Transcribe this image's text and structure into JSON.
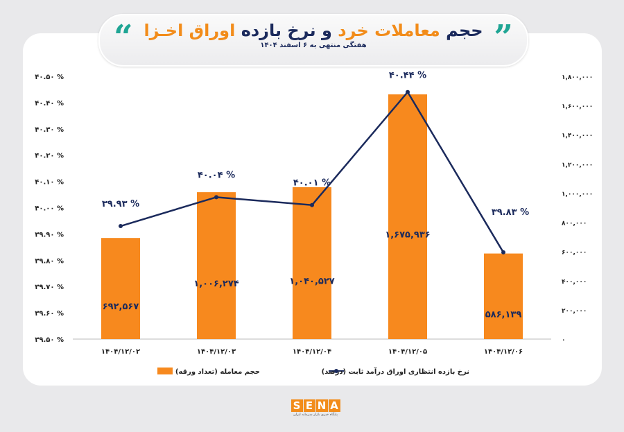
{
  "header": {
    "title_part1": "حجم",
    "title_part2": "معاملات خرد",
    "title_part3": "و نرخ بازده",
    "title_part4": "اوراق اخـزا",
    "subtitle": "هفتگی منتهی به ۶ اسفند ۱۴۰۴",
    "quote_icon": "quotation-marks"
  },
  "logo": {
    "letters": [
      "S",
      "E",
      "N",
      "A"
    ],
    "tagline": "پایگاه خبری بازار سرمایه ایران"
  },
  "colors": {
    "bar": "#f7891e",
    "line": "#1b2a5c",
    "accent": "#1fa594"
  },
  "chart_data": {
    "type": "bar+line",
    "categories": [
      "۱۴۰۴/۱۲/۰۲",
      "۱۴۰۴/۱۲/۰۳",
      "۱۴۰۴/۱۲/۰۴",
      "۱۴۰۴/۱۲/۰۵",
      "۱۴۰۴/۱۲/۰۶"
    ],
    "series": [
      {
        "name": "حجم معامله (تعداد ورقه)",
        "type": "bar",
        "axis": "right",
        "values": [
          692567,
          1006274,
          1040527,
          1675936,
          586139
        ],
        "labels": [
          "۶۹۲,۵۶۷",
          "۱,۰۰۶,۲۷۴",
          "۱,۰۴۰,۵۲۷",
          "۱,۶۷۵,۹۳۶",
          "۵۸۶,۱۳۹"
        ]
      },
      {
        "name": "نرخ بازده انتظاری اوراق درآمد ثابت (درصد)",
        "type": "line",
        "axis": "left",
        "values": [
          39.93,
          40.04,
          40.01,
          40.44,
          39.83
        ],
        "labels": [
          "۳۹.۹۳ %",
          "۴۰.۰۴ %",
          "۴۰.۰۱ %",
          "۴۰.۴۴ %",
          "۳۹.۸۳ %"
        ]
      }
    ],
    "left_axis": {
      "range": [
        39.5,
        40.5
      ],
      "ticks": [
        "۳۹.۵۰ %",
        "۳۹.۶۰ %",
        "۳۹.۷۰ %",
        "۳۹.۸۰ %",
        "۳۹.۹۰ %",
        "۴۰.۰۰ %",
        "۴۰.۱۰ %",
        "۴۰.۲۰ %",
        "۴۰.۳۰ %",
        "۴۰.۴۰ %",
        "۴۰.۵۰ %"
      ]
    },
    "right_axis": {
      "range": [
        0,
        1800000
      ],
      "ticks": [
        "۰",
        "۲۰۰,۰۰۰",
        "۴۰۰,۰۰۰",
        "۶۰۰,۰۰۰",
        "۸۰۰,۰۰۰",
        "۱,۰۰۰,۰۰۰",
        "۱,۲۰۰,۰۰۰",
        "۱,۴۰۰,۰۰۰",
        "۱,۶۰۰,۰۰۰",
        "۱,۸۰۰,۰۰۰"
      ]
    },
    "legend": "bottom",
    "grid": false
  }
}
